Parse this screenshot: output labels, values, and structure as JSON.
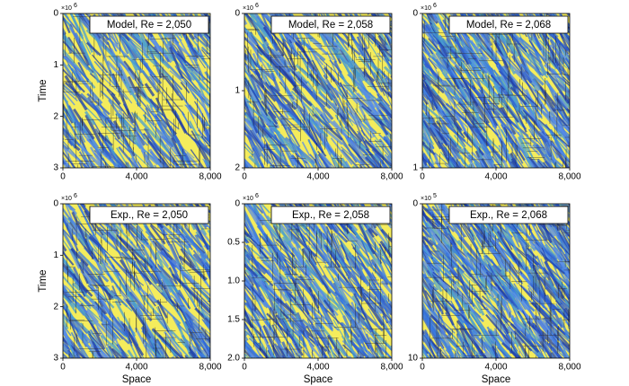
{
  "chart_data": [
    {
      "type": "heatmap",
      "title": "Model, Re = 2,050",
      "ylabel": "Time",
      "y_multiplier": "×10",
      "y_multiplier_exponent": "6",
      "xlim": [
        0,
        8000
      ],
      "xticks": [
        0,
        {
          "value": 4000,
          "label": "4,000"
        },
        {
          "value": 8000,
          "label": "8,000"
        }
      ],
      "ylim": [
        0,
        3
      ],
      "yticks": [
        0,
        1,
        2,
        3
      ],
      "y_inverted": true
    },
    {
      "type": "heatmap",
      "title": "Model, Re = 2,058",
      "y_multiplier": "×10",
      "y_multiplier_exponent": "6",
      "xlim": [
        0,
        8000
      ],
      "xticks": [
        0,
        {
          "value": 4000,
          "label": "4,000"
        },
        {
          "value": 8000,
          "label": "8,000"
        }
      ],
      "ylim": [
        0,
        2
      ],
      "yticks": [
        0,
        1,
        2
      ],
      "y_inverted": true
    },
    {
      "type": "heatmap",
      "title": "Model, Re = 2,068",
      "y_multiplier": "×10",
      "y_multiplier_exponent": "6",
      "xlim": [
        0,
        8000
      ],
      "xticks": [
        0,
        {
          "value": 4000,
          "label": "4,000"
        },
        {
          "value": 8000,
          "label": "8,000"
        }
      ],
      "ylim": [
        0,
        1
      ],
      "yticks": [
        0,
        1
      ],
      "y_inverted": true
    },
    {
      "type": "heatmap",
      "title": "Exp., Re = 2,050",
      "xlabel": "Space",
      "ylabel": "Time",
      "y_multiplier": "×10",
      "y_multiplier_exponent": "6",
      "xlim": [
        0,
        8000
      ],
      "xticks": [
        0,
        {
          "value": 4000,
          "label": "4,000"
        },
        {
          "value": 8000,
          "label": "8,000"
        }
      ],
      "ylim": [
        0,
        3
      ],
      "yticks": [
        0,
        1,
        2,
        3
      ],
      "y_inverted": true
    },
    {
      "type": "heatmap",
      "title": "Exp., Re = 2,058",
      "xlabel": "Space",
      "y_multiplier": "×10",
      "y_multiplier_exponent": "6",
      "xlim": [
        0,
        8000
      ],
      "xticks": [
        0,
        {
          "value": 4000,
          "label": "4,000"
        },
        {
          "value": 8000,
          "label": "8,000"
        }
      ],
      "ylim": [
        0,
        2
      ],
      "yticks": [
        0,
        0.5,
        {
          "value": 1,
          "label": "1.0"
        },
        1.5,
        {
          "value": 2,
          "label": "2.0"
        }
      ],
      "y_inverted": true
    },
    {
      "type": "heatmap",
      "title": "Exp., Re = 2,068",
      "xlabel": "Space",
      "y_multiplier": "×10",
      "y_multiplier_exponent": "5",
      "xlim": [
        0,
        8000
      ],
      "xticks": [
        0,
        {
          "value": 4000,
          "label": "4,000"
        },
        {
          "value": 8000,
          "label": "8,000"
        }
      ],
      "ylim": [
        0,
        10
      ],
      "yticks": [
        0,
        10
      ],
      "y_inverted": true
    }
  ]
}
